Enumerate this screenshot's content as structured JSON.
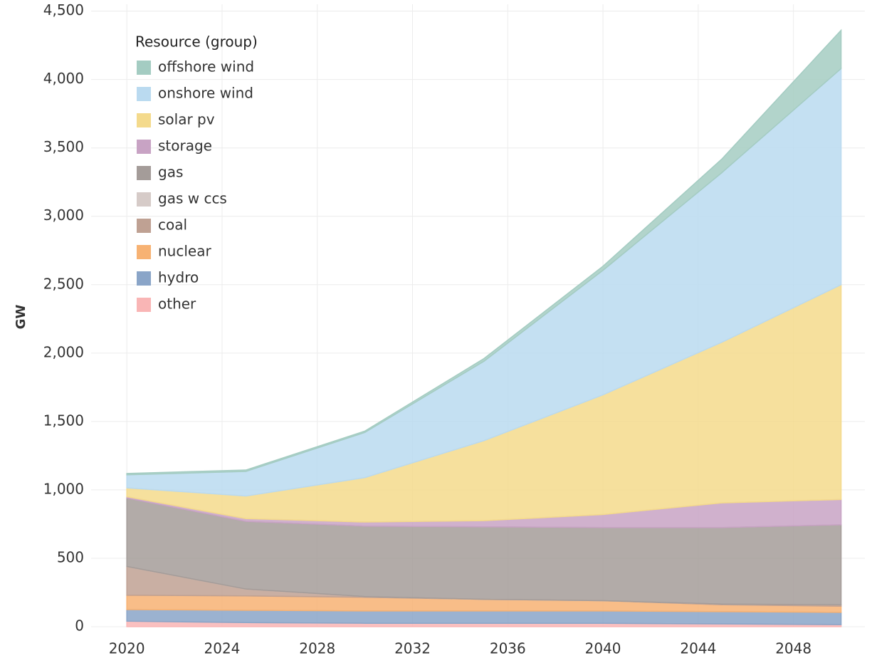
{
  "chart_data": {
    "type": "stacked_area",
    "y_label": "GW",
    "legend_title": "Resource (group)",
    "legend": "top-left",
    "grid": true,
    "x": [
      2020,
      2025,
      2030,
      2035,
      2040,
      2045,
      2050
    ],
    "xlim": [
      2018.5,
      2051
    ],
    "xticks": [
      2020,
      2024,
      2028,
      2032,
      2036,
      2040,
      2044,
      2048
    ],
    "ylim": [
      0,
      4550
    ],
    "yticks": [
      0,
      500,
      {
        "value": 1000,
        "label": "1,000"
      },
      {
        "value": 1500,
        "label": "1,500"
      },
      {
        "value": 2000,
        "label": "2,000"
      },
      {
        "value": 2500,
        "label": "2,500"
      },
      {
        "value": 3000,
        "label": "3,000"
      },
      {
        "value": 3500,
        "label": "3,500"
      },
      {
        "value": 4000,
        "label": "4,000"
      },
      {
        "value": 4500,
        "label": "4,500"
      }
    ],
    "series": [
      {
        "name": "other",
        "color": "#f9b5b5",
        "values": [
          40,
          30,
          25,
          25,
          25,
          20,
          15
        ]
      },
      {
        "name": "hydro",
        "color": "#8aa5c8",
        "values": [
          85,
          90,
          90,
          90,
          90,
          90,
          90
        ]
      },
      {
        "name": "nuclear",
        "color": "#f7b273",
        "values": [
          105,
          105,
          100,
          85,
          75,
          50,
          45
        ]
      },
      {
        "name": "coal",
        "color": "#bfa193",
        "values": [
          210,
          50,
          5,
          0,
          0,
          5,
          10
        ]
      },
      {
        "name": "gas w ccs",
        "color": "#d6cbc8",
        "values": [
          0,
          0,
          0,
          0,
          0,
          0,
          0
        ]
      },
      {
        "name": "gas",
        "color": "#a49c99",
        "values": [
          500,
          495,
          515,
          530,
          535,
          560,
          585
        ]
      },
      {
        "name": "storage",
        "color": "#c8a3c4",
        "values": [
          10,
          20,
          30,
          45,
          95,
          180,
          185
        ]
      },
      {
        "name": "solar pv",
        "color": "#f4da8c",
        "values": [
          65,
          165,
          325,
          585,
          875,
          1175,
          1570
        ]
      },
      {
        "name": "onshore wind",
        "color": "#badaf0",
        "values": [
          95,
          180,
          330,
          580,
          910,
          1240,
          1580
        ]
      },
      {
        "name": "offshore wind",
        "color": "#a4ccc2",
        "values": [
          10,
          10,
          10,
          20,
          30,
          100,
          280
        ]
      }
    ]
  }
}
